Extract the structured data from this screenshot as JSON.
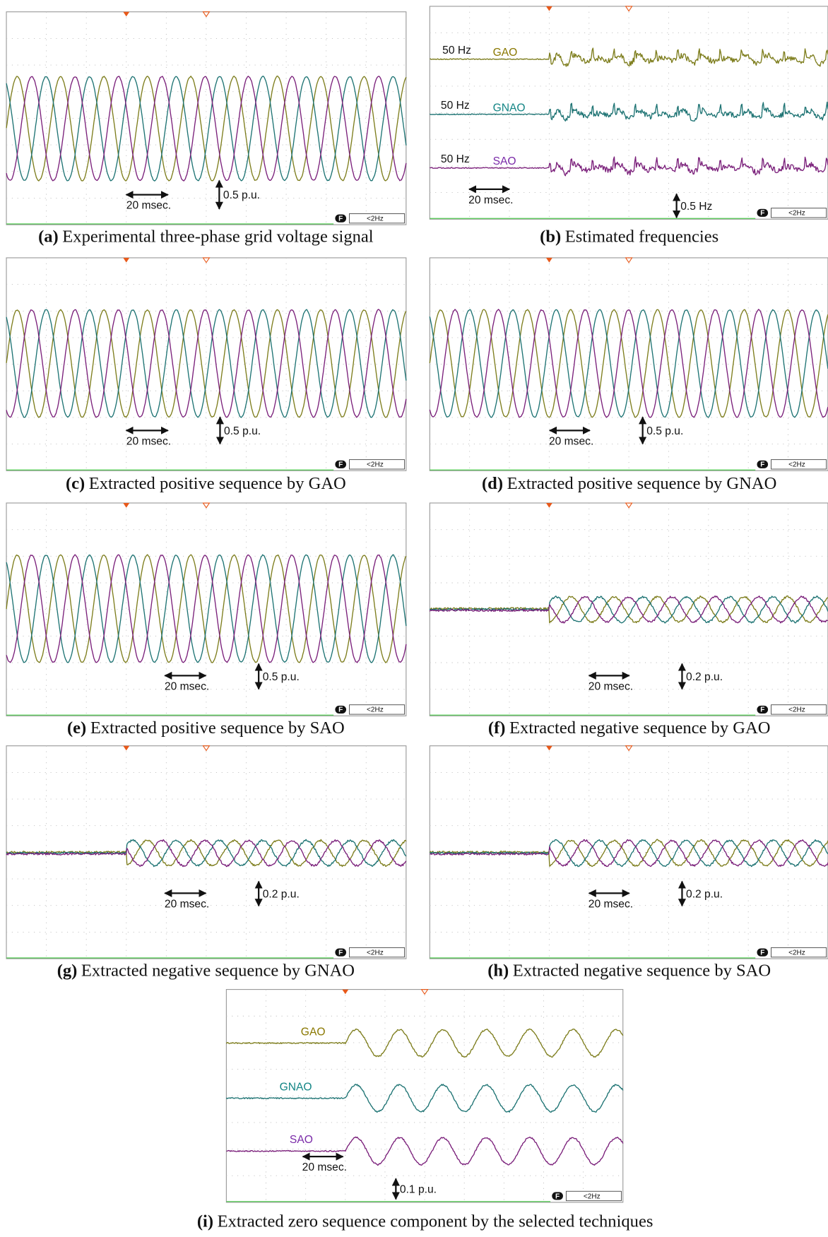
{
  "panels": [
    {
      "label": "(a)",
      "caption": "Experimental three-phase grid voltage signal",
      "time_scale": "20 msec.",
      "amplitude_scale": "0.5 p.u.",
      "badge": "F",
      "filter": "<2Hz"
    },
    {
      "label": "(b)",
      "caption": "Estimated frequencies",
      "traces": [
        {
          "frequency": "50 Hz",
          "name": "GAO"
        },
        {
          "frequency": "50 Hz",
          "name": "GNAO"
        },
        {
          "frequency": "50 Hz",
          "name": "SAO"
        }
      ],
      "time_scale": "20 msec.",
      "amplitude_scale": "0.5 Hz",
      "badge": "F",
      "filter": "<2Hz"
    },
    {
      "label": "(c)",
      "caption": "Extracted positive sequence by GAO",
      "time_scale": "20 msec.",
      "amplitude_scale": "0.5 p.u.",
      "badge": "F",
      "filter": "<2Hz"
    },
    {
      "label": "(d)",
      "caption": "Extracted positive sequence by GNAO",
      "time_scale": "20 msec.",
      "amplitude_scale": "0.5 p.u.",
      "badge": "F",
      "filter": "<2Hz"
    },
    {
      "label": "(e)",
      "caption": "Extracted positive sequence by SAO",
      "time_scale": "20 msec.",
      "amplitude_scale": "0.5 p.u.",
      "badge": "F",
      "filter": "<2Hz"
    },
    {
      "label": "(f)",
      "caption": "Extracted negative sequence by GAO",
      "time_scale": "20 msec.",
      "amplitude_scale": "0.2 p.u.",
      "badge": "F",
      "filter": "<2Hz"
    },
    {
      "label": "(g)",
      "caption": "Extracted negative sequence by GNAO",
      "time_scale": "20 msec.",
      "amplitude_scale": "0.2 p.u.",
      "badge": "F",
      "filter": "<2Hz"
    },
    {
      "label": "(h)",
      "caption": "Extracted negative sequence by SAO",
      "time_scale": "20 msec.",
      "amplitude_scale": "0.2 p.u.",
      "badge": "F",
      "filter": "<2Hz"
    },
    {
      "label": "(i)",
      "caption": "Extracted zero sequence component by the selected techniques",
      "traces": [
        {
          "name": "GAO"
        },
        {
          "name": "GNAO"
        },
        {
          "name": "SAO"
        }
      ],
      "time_scale": "20 msec.",
      "amplitude_scale": "0.1 p.u.",
      "badge": "F",
      "filter": "<2Hz"
    }
  ]
}
